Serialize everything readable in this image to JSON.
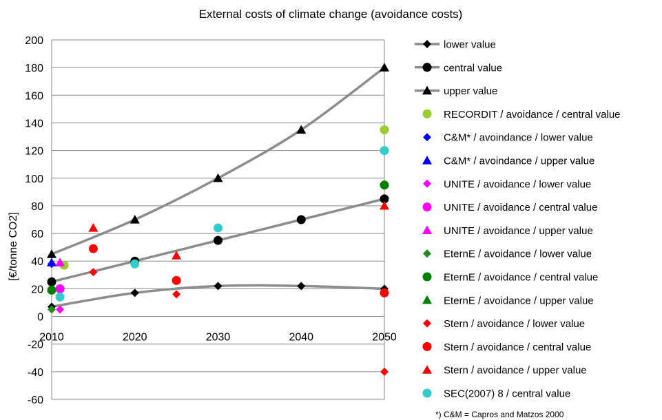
{
  "chart_data": {
    "type": "scatter",
    "title": "External costs of climate change (avoidance costs)",
    "xlabel": "",
    "ylabel": "[€/tonne CO2]",
    "xlim": [
      2010,
      2050
    ],
    "ylim": [
      -60,
      200
    ],
    "x_ticks": [
      "2010",
      "2020",
      "2030",
      "2040",
      "2050"
    ],
    "y_ticks": [
      "200",
      "180",
      "160",
      "140",
      "120",
      "100",
      "80",
      "60",
      "40",
      "20",
      "0",
      "-20",
      "-40",
      "-60"
    ],
    "grid": "horizontal",
    "legend_position": "right",
    "footnote": "*) C&M = Capros and Matzos 2000",
    "trend_color": "#8c8c8c",
    "series": [
      {
        "name": "lower value",
        "marker": "diamond",
        "color": "#000000",
        "trendline": true,
        "points": [
          [
            2010,
            7
          ],
          [
            2020,
            17
          ],
          [
            2030,
            22
          ],
          [
            2040,
            22
          ],
          [
            2050,
            20
          ]
        ]
      },
      {
        "name": "central value",
        "marker": "circle",
        "color": "#000000",
        "trendline": true,
        "points": [
          [
            2010,
            25
          ],
          [
            2020,
            40
          ],
          [
            2030,
            55
          ],
          [
            2040,
            70
          ],
          [
            2050,
            85
          ]
        ]
      },
      {
        "name": "upper value",
        "marker": "triangle",
        "color": "#000000",
        "trendline": true,
        "points": [
          [
            2010,
            45
          ],
          [
            2020,
            70
          ],
          [
            2030,
            100
          ],
          [
            2040,
            135
          ],
          [
            2050,
            180
          ]
        ]
      },
      {
        "name": "RECORDIT / avoidance / central value",
        "marker": "circle",
        "color": "#9acd32",
        "points": [
          [
            2011.5,
            37
          ],
          [
            2050,
            135
          ]
        ]
      },
      {
        "name": "C&M* / avoindance / lower value",
        "marker": "diamond",
        "color": "#0000ff",
        "points": [
          [
            2010,
            38
          ]
        ]
      },
      {
        "name": "C&M* / avoindance / upper value",
        "marker": "triangle",
        "color": "#0000ff",
        "points": [
          [
            2010,
            39
          ]
        ]
      },
      {
        "name": "UNITE / avoidance / lower value",
        "marker": "diamond",
        "color": "#ff00ff",
        "points": [
          [
            2011,
            5
          ]
        ]
      },
      {
        "name": "UNITE / avoidance / central value",
        "marker": "circle",
        "color": "#ff00ff",
        "points": [
          [
            2011,
            20
          ]
        ]
      },
      {
        "name": "UNITE / avoidance / upper value",
        "marker": "triangle",
        "color": "#ff00ff",
        "points": [
          [
            2011,
            39
          ]
        ]
      },
      {
        "name": "EternE / avoidance / lower value",
        "marker": "diamond",
        "color": "#228b22",
        "points": [
          [
            2010,
            5
          ]
        ]
      },
      {
        "name": "EternE / avoidance / central value",
        "marker": "circle",
        "color": "#008000",
        "points": [
          [
            2010,
            19
          ],
          [
            2050,
            95
          ]
        ]
      },
      {
        "name": "EternE / avoidance / upper value",
        "marker": "triangle",
        "color": "#008000",
        "points": []
      },
      {
        "name": "Stern / avoidance / lower value",
        "marker": "diamond",
        "color": "#ff0000",
        "points": [
          [
            2015,
            32
          ],
          [
            2025,
            16
          ],
          [
            2050,
            -40
          ]
        ]
      },
      {
        "name": "Stern / avoidance / central value",
        "marker": "circle",
        "color": "#ff0000",
        "points": [
          [
            2015,
            49
          ],
          [
            2025,
            26
          ],
          [
            2050,
            17
          ]
        ]
      },
      {
        "name": "Stern / avoidance / upper value",
        "marker": "triangle",
        "color": "#ff0000",
        "points": [
          [
            2015,
            64
          ],
          [
            2025,
            44
          ],
          [
            2050,
            80
          ]
        ]
      },
      {
        "name": "SEC(2007) 8 / central value",
        "marker": "circle",
        "color": "#33cccc",
        "points": [
          [
            2011,
            14
          ],
          [
            2020,
            38
          ],
          [
            2030,
            64
          ],
          [
            2050,
            120
          ]
        ]
      }
    ]
  }
}
